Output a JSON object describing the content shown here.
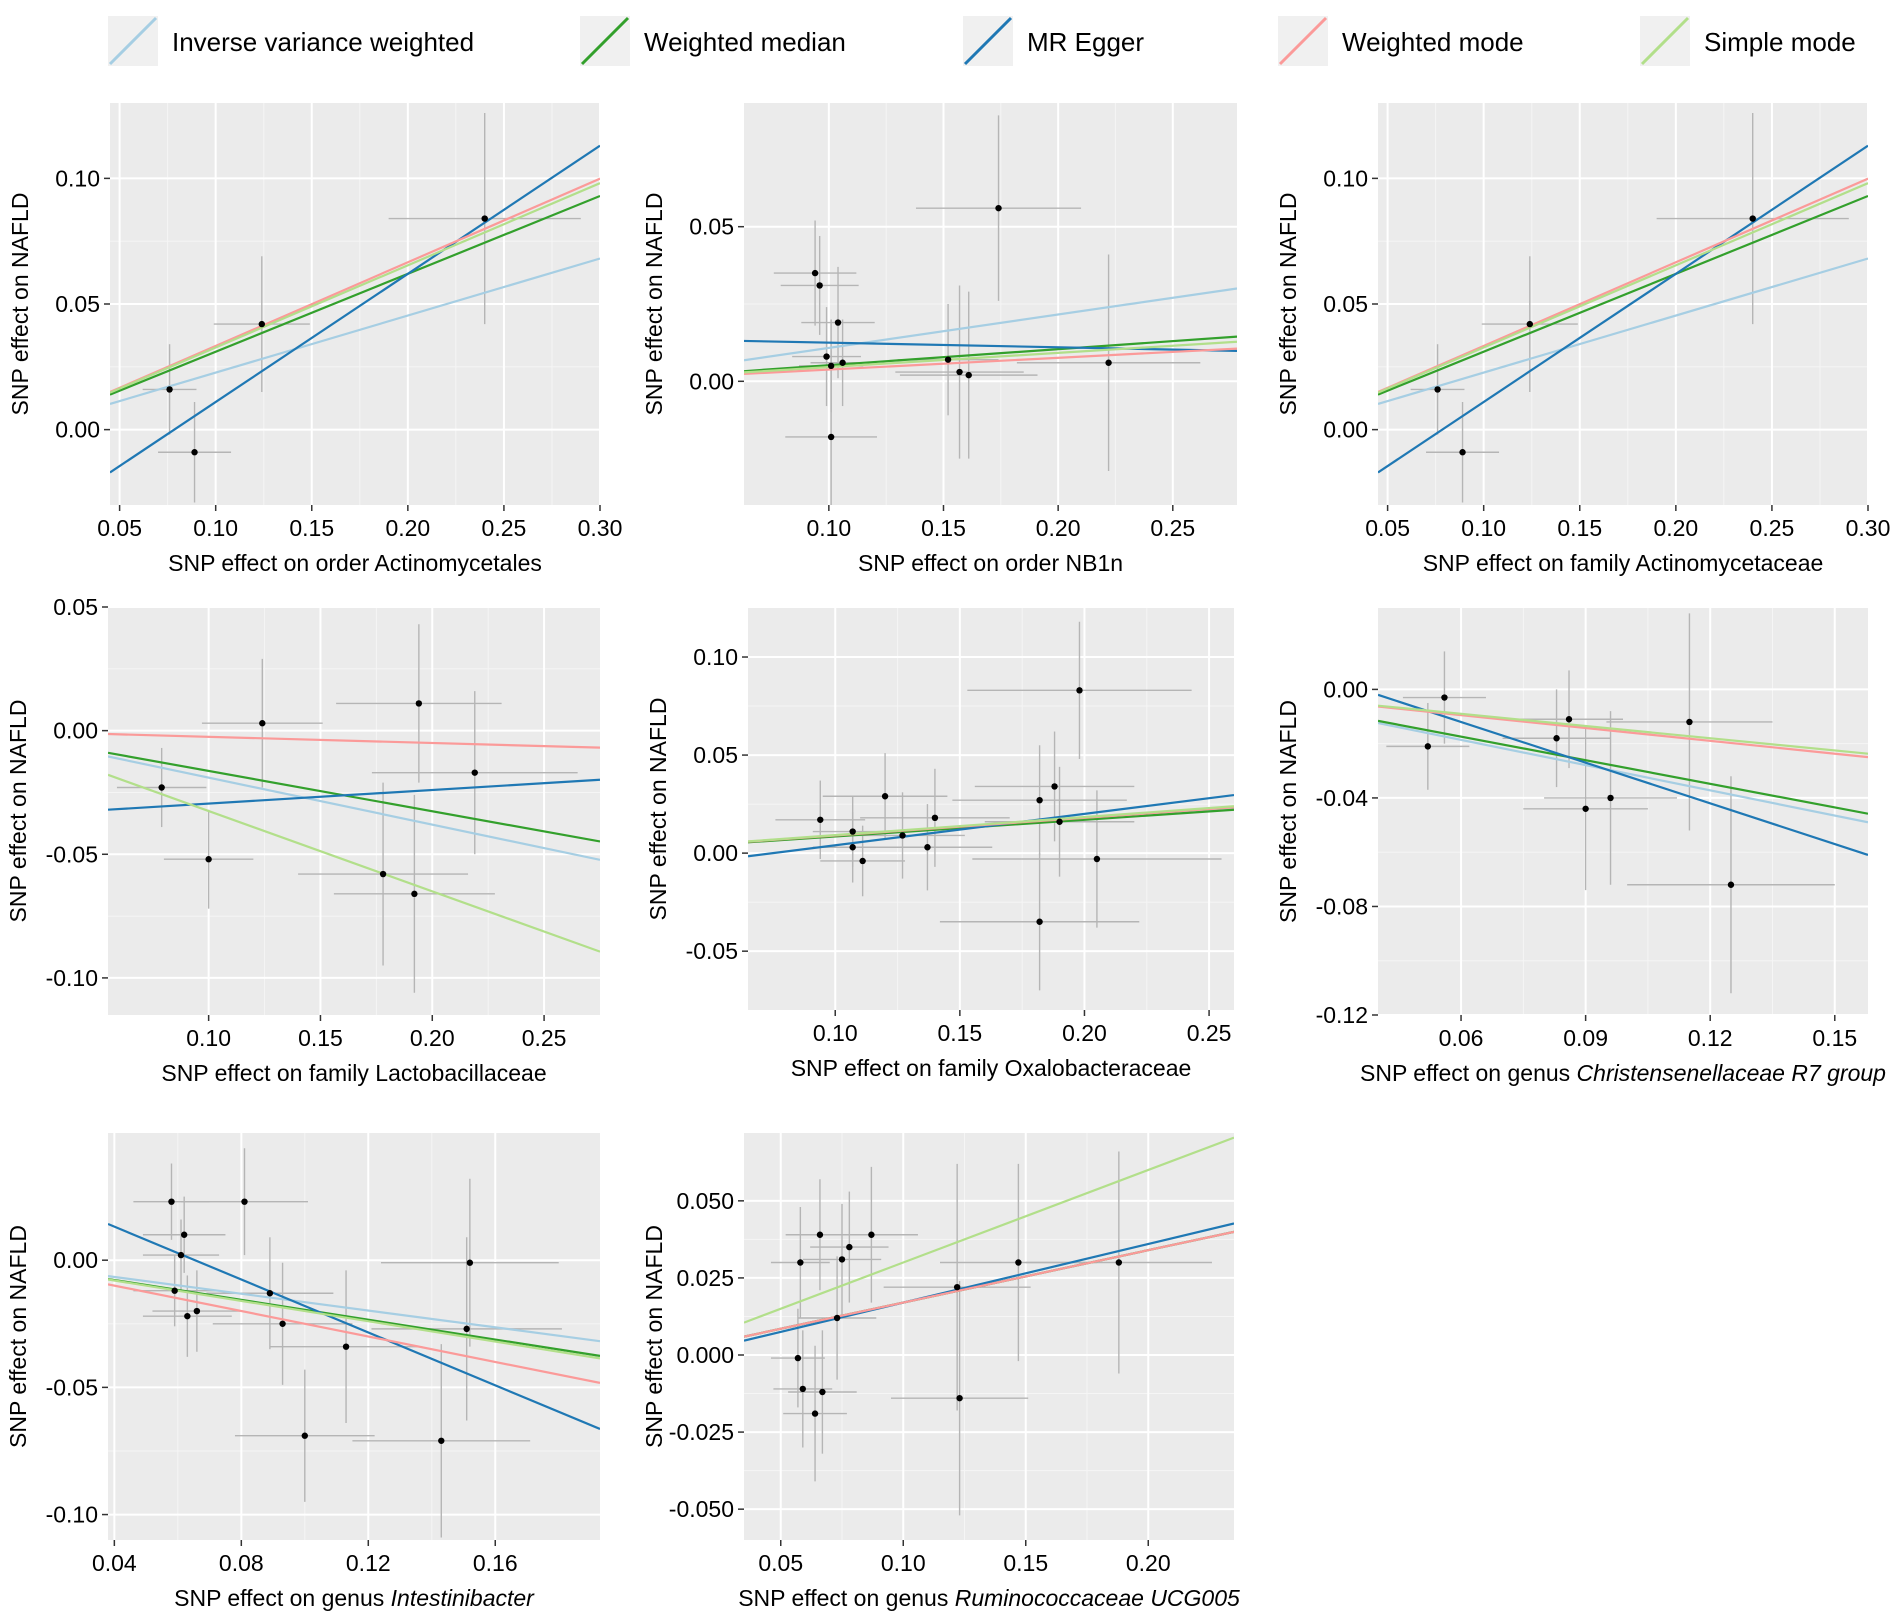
{
  "legend": [
    {
      "label": "Inverse variance weighted",
      "color": "#a6cee3"
    },
    {
      "label": "Weighted median",
      "color": "#33a02c"
    },
    {
      "label": "MR Egger",
      "color": "#1f78b4"
    },
    {
      "label": "Weighted mode",
      "color": "#fb9a99"
    },
    {
      "label": "Simple mode",
      "color": "#b2df8a"
    }
  ],
  "chart_data": [
    {
      "type": "scatter",
      "xlabel_prefix": "SNP effect on order ",
      "xlabel_taxon": "Actinomycetales",
      "xlabel_italic": false,
      "ylabel": "SNP effect on NAFLD",
      "xlim": [
        0.045,
        0.3
      ],
      "ylim": [
        -0.03,
        0.13
      ],
      "xticks": [
        0.05,
        0.1,
        0.15,
        0.2,
        0.25,
        0.3
      ],
      "xtick_labels": [
        "0.05",
        "0.10",
        "0.15",
        "0.20",
        "0.25",
        "0.30"
      ],
      "yticks": [
        0.0,
        0.05,
        0.1
      ],
      "ytick_labels": [
        "0.00",
        "0.05",
        "0.10"
      ],
      "points": [
        {
          "x": 0.076,
          "y": 0.016,
          "xerr": 0.014,
          "yerr": 0.018
        },
        {
          "x": 0.089,
          "y": -0.009,
          "xerr": 0.019,
          "yerr": 0.02
        },
        {
          "x": 0.124,
          "y": 0.042,
          "xerr": 0.025,
          "yerr": 0.027
        },
        {
          "x": 0.24,
          "y": 0.084,
          "xerr": 0.05,
          "yerr": 0.042
        }
      ],
      "lines": [
        {
          "method": "Inverse variance weighted",
          "intercept": 0,
          "slope": 0.227
        },
        {
          "method": "Weighted median",
          "intercept": 0,
          "slope": 0.31
        },
        {
          "method": "MR Egger",
          "intercept": -0.04,
          "slope": 0.51
        },
        {
          "method": "Weighted mode",
          "intercept": 0,
          "slope": 0.333
        },
        {
          "method": "Simple mode",
          "intercept": 0,
          "slope": 0.327
        }
      ]
    },
    {
      "type": "scatter",
      "xlabel_prefix": "SNP effect on order ",
      "xlabel_taxon": "NB1n",
      "xlabel_italic": false,
      "ylabel": "SNP effect on NAFLD",
      "xlim": [
        0.063,
        0.278
      ],
      "ylim": [
        -0.04,
        0.09
      ],
      "xticks": [
        0.1,
        0.15,
        0.2,
        0.25
      ],
      "xtick_labels": [
        "0.10",
        "0.15",
        "0.20",
        "0.25"
      ],
      "yticks": [
        0.0,
        0.05
      ],
      "ytick_labels": [
        "0.00",
        "0.05"
      ],
      "points": [
        {
          "x": 0.094,
          "y": 0.035,
          "xerr": 0.018,
          "yerr": 0.017
        },
        {
          "x": 0.096,
          "y": 0.031,
          "xerr": 0.017,
          "yerr": 0.016
        },
        {
          "x": 0.099,
          "y": 0.008,
          "xerr": 0.015,
          "yerr": 0.016
        },
        {
          "x": 0.101,
          "y": 0.005,
          "xerr": 0.014,
          "yerr": 0.015
        },
        {
          "x": 0.101,
          "y": -0.018,
          "xerr": 0.02,
          "yerr": 0.028
        },
        {
          "x": 0.104,
          "y": 0.019,
          "xerr": 0.016,
          "yerr": 0.018
        },
        {
          "x": 0.106,
          "y": 0.006,
          "xerr": 0.014,
          "yerr": 0.014
        },
        {
          "x": 0.152,
          "y": 0.007,
          "xerr": 0.022,
          "yerr": 0.018
        },
        {
          "x": 0.157,
          "y": 0.003,
          "xerr": 0.028,
          "yerr": 0.028
        },
        {
          "x": 0.161,
          "y": 0.002,
          "xerr": 0.03,
          "yerr": 0.027
        },
        {
          "x": 0.174,
          "y": 0.056,
          "xerr": 0.036,
          "yerr": 0.03
        },
        {
          "x": 0.222,
          "y": 0.006,
          "xerr": 0.04,
          "yerr": 0.035
        }
      ],
      "lines": [
        {
          "method": "Inverse variance weighted",
          "intercept": 0,
          "slope": 0.108
        },
        {
          "method": "Weighted median",
          "intercept": 0,
          "slope": 0.052
        },
        {
          "method": "MR Egger",
          "intercept": 0.014,
          "slope": -0.015
        },
        {
          "method": "Weighted mode",
          "intercept": 0,
          "slope": 0.038
        },
        {
          "method": "Simple mode",
          "intercept": 0,
          "slope": 0.046
        }
      ]
    },
    {
      "type": "scatter",
      "xlabel_prefix": "SNP effect on family ",
      "xlabel_taxon": "Actinomycetaceae",
      "xlabel_italic": false,
      "ylabel": "SNP effect on NAFLD",
      "xlim": [
        0.045,
        0.3
      ],
      "ylim": [
        -0.03,
        0.13
      ],
      "xticks": [
        0.05,
        0.1,
        0.15,
        0.2,
        0.25,
        0.3
      ],
      "xtick_labels": [
        "0.05",
        "0.10",
        "0.15",
        "0.20",
        "0.25",
        "0.30"
      ],
      "yticks": [
        0.0,
        0.05,
        0.1
      ],
      "ytick_labels": [
        "0.00",
        "0.05",
        "0.10"
      ],
      "points": [
        {
          "x": 0.076,
          "y": 0.016,
          "xerr": 0.014,
          "yerr": 0.018
        },
        {
          "x": 0.089,
          "y": -0.009,
          "xerr": 0.019,
          "yerr": 0.02
        },
        {
          "x": 0.124,
          "y": 0.042,
          "xerr": 0.025,
          "yerr": 0.027
        },
        {
          "x": 0.24,
          "y": 0.084,
          "xerr": 0.05,
          "yerr": 0.042
        }
      ],
      "lines": [
        {
          "method": "Inverse variance weighted",
          "intercept": 0,
          "slope": 0.227
        },
        {
          "method": "Weighted median",
          "intercept": 0,
          "slope": 0.31
        },
        {
          "method": "MR Egger",
          "intercept": -0.04,
          "slope": 0.51
        },
        {
          "method": "Weighted mode",
          "intercept": 0,
          "slope": 0.333
        },
        {
          "method": "Simple mode",
          "intercept": 0,
          "slope": 0.327
        }
      ]
    },
    {
      "type": "scatter",
      "xlabel_prefix": "SNP effect on family ",
      "xlabel_taxon": "Lactobacillaceae",
      "xlabel_italic": false,
      "ylabel": "SNP effect on NAFLD",
      "xlim": [
        0.055,
        0.275
      ],
      "ylim": [
        -0.115,
        0.05
      ],
      "xticks": [
        0.1,
        0.15,
        0.2,
        0.25
      ],
      "xtick_labels": [
        "0.10",
        "0.15",
        "0.20",
        "0.25"
      ],
      "yticks": [
        -0.1,
        -0.05,
        0.0,
        0.05
      ],
      "ytick_labels": [
        "-0.10",
        "-0.05",
        "0.00",
        "0.05"
      ],
      "points": [
        {
          "x": 0.079,
          "y": -0.023,
          "xerr": 0.02,
          "yerr": 0.016
        },
        {
          "x": 0.1,
          "y": -0.052,
          "xerr": 0.02,
          "yerr": 0.02
        },
        {
          "x": 0.124,
          "y": 0.003,
          "xerr": 0.027,
          "yerr": 0.026
        },
        {
          "x": 0.178,
          "y": -0.058,
          "xerr": 0.038,
          "yerr": 0.037
        },
        {
          "x": 0.192,
          "y": -0.066,
          "xerr": 0.036,
          "yerr": 0.04
        },
        {
          "x": 0.194,
          "y": 0.011,
          "xerr": 0.037,
          "yerr": 0.032
        },
        {
          "x": 0.219,
          "y": -0.017,
          "xerr": 0.046,
          "yerr": 0.033
        }
      ],
      "lines": [
        {
          "method": "Inverse variance weighted",
          "intercept": 0,
          "slope": -0.19
        },
        {
          "method": "Weighted median",
          "intercept": 0,
          "slope": -0.163
        },
        {
          "method": "MR Egger",
          "intercept": -0.035,
          "slope": 0.055
        },
        {
          "method": "Weighted mode",
          "intercept": 0,
          "slope": -0.025
        },
        {
          "method": "Simple mode",
          "intercept": 0,
          "slope": -0.325
        }
      ]
    },
    {
      "type": "scatter",
      "xlabel_prefix": "SNP effect on family ",
      "xlabel_taxon": "Oxalobacteraceae",
      "xlabel_italic": false,
      "ylabel": "SNP effect on NAFLD",
      "xlim": [
        0.065,
        0.26
      ],
      "ylim": [
        -0.08,
        0.125
      ],
      "xticks": [
        0.1,
        0.15,
        0.2,
        0.25
      ],
      "xtick_labels": [
        "0.10",
        "0.15",
        "0.20",
        "0.25"
      ],
      "yticks": [
        -0.05,
        0.0,
        0.05,
        0.1
      ],
      "ytick_labels": [
        "-0.05",
        "0.00",
        "0.05",
        "0.10"
      ],
      "points": [
        {
          "x": 0.094,
          "y": 0.017,
          "xerr": 0.018,
          "yerr": 0.02
        },
        {
          "x": 0.107,
          "y": 0.011,
          "xerr": 0.016,
          "yerr": 0.018
        },
        {
          "x": 0.107,
          "y": 0.003,
          "xerr": 0.016,
          "yerr": 0.018
        },
        {
          "x": 0.111,
          "y": -0.004,
          "xerr": 0.017,
          "yerr": 0.018
        },
        {
          "x": 0.12,
          "y": 0.029,
          "xerr": 0.025,
          "yerr": 0.022
        },
        {
          "x": 0.127,
          "y": 0.009,
          "xerr": 0.025,
          "yerr": 0.022
        },
        {
          "x": 0.137,
          "y": 0.003,
          "xerr": 0.026,
          "yerr": 0.022
        },
        {
          "x": 0.14,
          "y": 0.018,
          "xerr": 0.03,
          "yerr": 0.025
        },
        {
          "x": 0.182,
          "y": 0.027,
          "xerr": 0.035,
          "yerr": 0.028
        },
        {
          "x": 0.182,
          "y": -0.035,
          "xerr": 0.04,
          "yerr": 0.035
        },
        {
          "x": 0.188,
          "y": 0.034,
          "xerr": 0.032,
          "yerr": 0.028
        },
        {
          "x": 0.19,
          "y": 0.016,
          "xerr": 0.03,
          "yerr": 0.028
        },
        {
          "x": 0.198,
          "y": 0.083,
          "xerr": 0.045,
          "yerr": 0.035
        },
        {
          "x": 0.205,
          "y": -0.003,
          "xerr": 0.05,
          "yerr": 0.035
        }
      ],
      "lines": [
        {
          "method": "Inverse variance weighted",
          "intercept": 0,
          "slope": 0.088
        },
        {
          "method": "Weighted median",
          "intercept": 0,
          "slope": 0.085
        },
        {
          "method": "MR Egger",
          "intercept": -0.012,
          "slope": 0.16
        },
        {
          "method": "Weighted mode",
          "intercept": 0,
          "slope": 0.09
        },
        {
          "method": "Simple mode",
          "intercept": 0,
          "slope": 0.092
        }
      ]
    },
    {
      "type": "scatter",
      "xlabel_prefix": "SNP effect on genus ",
      "xlabel_taxon": "Christensenellaceae R7 group",
      "xlabel_italic": true,
      "ylabel": "SNP effect on NAFLD",
      "xlim": [
        0.04,
        0.158
      ],
      "ylim": [
        -0.12,
        0.03
      ],
      "xticks": [
        0.06,
        0.09,
        0.12,
        0.15
      ],
      "xtick_labels": [
        "0.06",
        "0.09",
        "0.12",
        "0.15"
      ],
      "yticks": [
        -0.12,
        -0.08,
        -0.04,
        0.0
      ],
      "ytick_labels": [
        "-0.12",
        "-0.08",
        "-0.04",
        "0.00"
      ],
      "points": [
        {
          "x": 0.052,
          "y": -0.021,
          "xerr": 0.01,
          "yerr": 0.016
        },
        {
          "x": 0.056,
          "y": -0.003,
          "xerr": 0.01,
          "yerr": 0.017
        },
        {
          "x": 0.083,
          "y": -0.018,
          "xerr": 0.013,
          "yerr": 0.018
        },
        {
          "x": 0.086,
          "y": -0.011,
          "xerr": 0.013,
          "yerr": 0.018
        },
        {
          "x": 0.09,
          "y": -0.044,
          "xerr": 0.015,
          "yerr": 0.03
        },
        {
          "x": 0.096,
          "y": -0.04,
          "xerr": 0.016,
          "yerr": 0.032
        },
        {
          "x": 0.115,
          "y": -0.012,
          "xerr": 0.02,
          "yerr": 0.04
        },
        {
          "x": 0.125,
          "y": -0.072,
          "xerr": 0.025,
          "yerr": 0.04
        }
      ],
      "lines": [
        {
          "method": "Inverse variance weighted",
          "intercept": 0,
          "slope": -0.31
        },
        {
          "method": "Weighted median",
          "intercept": 0,
          "slope": -0.29
        },
        {
          "method": "MR Egger",
          "intercept": 0.018,
          "slope": -0.5
        },
        {
          "method": "Weighted mode",
          "intercept": 0,
          "slope": -0.158
        },
        {
          "method": "Simple mode",
          "intercept": 0,
          "slope": -0.15
        }
      ]
    },
    {
      "type": "scatter",
      "xlabel_prefix": "SNP effect on genus ",
      "xlabel_taxon": "Intestinibacter",
      "xlabel_italic": true,
      "ylabel": "SNP effect on NAFLD",
      "xlim": [
        0.038,
        0.193
      ],
      "ylim": [
        -0.11,
        0.05
      ],
      "xticks": [
        0.04,
        0.08,
        0.12,
        0.16
      ],
      "xtick_labels": [
        "0.04",
        "0.08",
        "0.12",
        "0.16"
      ],
      "yticks": [
        -0.1,
        -0.05,
        0.0
      ],
      "ytick_labels": [
        "-0.10",
        "-0.05",
        "0.00"
      ],
      "points": [
        {
          "x": 0.058,
          "y": 0.023,
          "xerr": 0.012,
          "yerr": 0.015
        },
        {
          "x": 0.059,
          "y": -0.012,
          "xerr": 0.013,
          "yerr": 0.014
        },
        {
          "x": 0.061,
          "y": 0.002,
          "xerr": 0.012,
          "yerr": 0.014
        },
        {
          "x": 0.062,
          "y": 0.01,
          "xerr": 0.013,
          "yerr": 0.015
        },
        {
          "x": 0.063,
          "y": -0.022,
          "xerr": 0.014,
          "yerr": 0.016
        },
        {
          "x": 0.066,
          "y": -0.02,
          "xerr": 0.014,
          "yerr": 0.016
        },
        {
          "x": 0.081,
          "y": 0.023,
          "xerr": 0.02,
          "yerr": 0.021
        },
        {
          "x": 0.089,
          "y": -0.013,
          "xerr": 0.02,
          "yerr": 0.022
        },
        {
          "x": 0.093,
          "y": -0.025,
          "xerr": 0.022,
          "yerr": 0.024
        },
        {
          "x": 0.1,
          "y": -0.069,
          "xerr": 0.022,
          "yerr": 0.026
        },
        {
          "x": 0.113,
          "y": -0.034,
          "xerr": 0.024,
          "yerr": 0.03
        },
        {
          "x": 0.143,
          "y": -0.071,
          "xerr": 0.028,
          "yerr": 0.038
        },
        {
          "x": 0.151,
          "y": -0.027,
          "xerr": 0.03,
          "yerr": 0.036
        },
        {
          "x": 0.152,
          "y": -0.001,
          "xerr": 0.028,
          "yerr": 0.033
        }
      ],
      "lines": [
        {
          "method": "Inverse variance weighted",
          "intercept": 0,
          "slope": -0.165
        },
        {
          "method": "Weighted median",
          "intercept": 0,
          "slope": -0.195
        },
        {
          "method": "MR Egger",
          "intercept": 0.034,
          "slope": -0.52
        },
        {
          "method": "Weighted mode",
          "intercept": 0,
          "slope": -0.25
        },
        {
          "method": "Simple mode",
          "intercept": 0,
          "slope": -0.2
        }
      ]
    },
    {
      "type": "scatter",
      "xlabel_prefix": "SNP effect on genus ",
      "xlabel_taxon": "Ruminococcaceae UCG005",
      "xlabel_italic": true,
      "ylabel": "SNP effect on NAFLD",
      "xlim": [
        0.035,
        0.235
      ],
      "ylim": [
        -0.06,
        0.072
      ],
      "xticks": [
        0.05,
        0.1,
        0.15,
        0.2
      ],
      "xtick_labels": [
        "0.05",
        "0.10",
        "0.15",
        "0.20"
      ],
      "yticks": [
        -0.05,
        -0.025,
        0.0,
        0.025,
        0.05
      ],
      "ytick_labels": [
        "-0.050",
        "-0.025",
        "0.000",
        "0.025",
        "0.050"
      ],
      "points": [
        {
          "x": 0.057,
          "y": -0.001,
          "xerr": 0.011,
          "yerr": 0.016
        },
        {
          "x": 0.058,
          "y": 0.03,
          "xerr": 0.012,
          "yerr": 0.018
        },
        {
          "x": 0.059,
          "y": -0.011,
          "xerr": 0.012,
          "yerr": 0.019
        },
        {
          "x": 0.064,
          "y": -0.019,
          "xerr": 0.013,
          "yerr": 0.022
        },
        {
          "x": 0.066,
          "y": 0.039,
          "xerr": 0.014,
          "yerr": 0.018
        },
        {
          "x": 0.067,
          "y": -0.012,
          "xerr": 0.014,
          "yerr": 0.02
        },
        {
          "x": 0.073,
          "y": 0.012,
          "xerr": 0.016,
          "yerr": 0.02
        },
        {
          "x": 0.075,
          "y": 0.031,
          "xerr": 0.016,
          "yerr": 0.018
        },
        {
          "x": 0.078,
          "y": 0.035,
          "xerr": 0.016,
          "yerr": 0.018
        },
        {
          "x": 0.087,
          "y": 0.039,
          "xerr": 0.019,
          "yerr": 0.022
        },
        {
          "x": 0.122,
          "y": 0.022,
          "xerr": 0.03,
          "yerr": 0.04
        },
        {
          "x": 0.123,
          "y": -0.014,
          "xerr": 0.028,
          "yerr": 0.038
        },
        {
          "x": 0.147,
          "y": 0.03,
          "xerr": 0.032,
          "yerr": 0.032
        },
        {
          "x": 0.188,
          "y": 0.03,
          "xerr": 0.038,
          "yerr": 0.036
        }
      ],
      "lines": [
        {
          "method": "Inverse variance weighted",
          "intercept": 0,
          "slope": 0.17
        },
        {
          "method": "Weighted median",
          "intercept": 0,
          "slope": 0.17
        },
        {
          "method": "MR Egger",
          "intercept": -0.002,
          "slope": 0.19
        },
        {
          "method": "Weighted mode",
          "intercept": 0,
          "slope": 0.17
        },
        {
          "method": "Simple mode",
          "intercept": 0,
          "slope": 0.3
        }
      ]
    }
  ]
}
